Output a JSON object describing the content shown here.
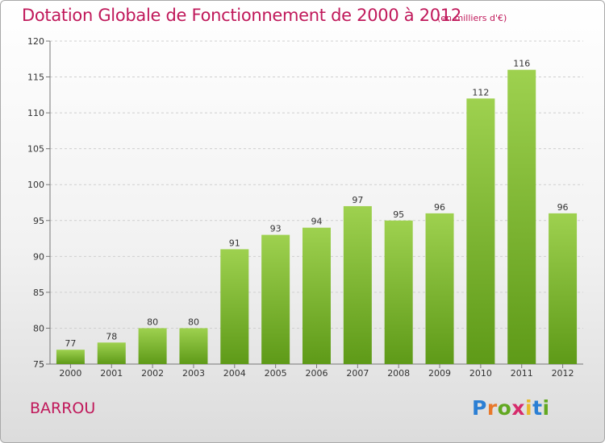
{
  "title": "Dotation Globale de Fonctionnement de 2000 à 2012",
  "subtitle": "(en milliers d'€)",
  "commune": "BARROU",
  "logo": {
    "letters": [
      "P",
      "r",
      "o",
      "x",
      "i",
      "t",
      "i"
    ],
    "colors": [
      "#2b7fd4",
      "#e8782a",
      "#62a821",
      "#d62b6b",
      "#e8b82a",
      "#2b7fd4",
      "#62a821"
    ]
  },
  "colors": {
    "bar_top": "#9ed14f",
    "bar_bottom": "#5e9a18",
    "accent": "#c0185a"
  },
  "chart_data": {
    "type": "bar",
    "categories": [
      "2000",
      "2001",
      "2002",
      "2003",
      "2004",
      "2005",
      "2006",
      "2007",
      "2008",
      "2009",
      "2010",
      "2011",
      "2012"
    ],
    "values": [
      77,
      78,
      80,
      80,
      91,
      93,
      94,
      97,
      95,
      96,
      112,
      116,
      96
    ],
    "ylim": [
      75,
      120
    ],
    "yticks": [
      75,
      80,
      85,
      90,
      95,
      100,
      105,
      110,
      115,
      120
    ],
    "grid": true
  }
}
